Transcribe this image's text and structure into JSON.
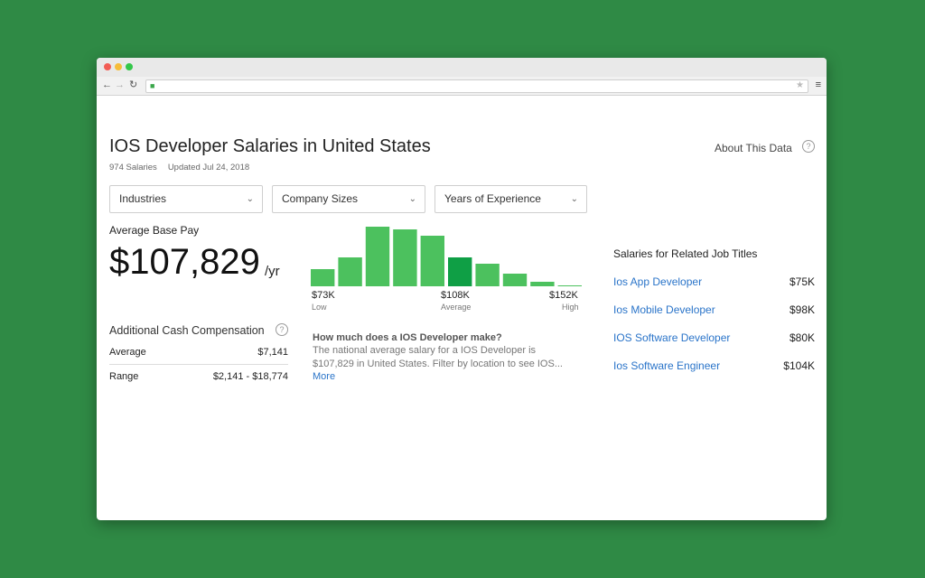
{
  "page": {
    "title": "IOS Developer Salaries in United States",
    "salary_count": "974 Salaries",
    "updated": "Updated Jul 24, 2018",
    "about_label": "About This Data",
    "help_glyph": "?"
  },
  "filters": [
    {
      "label": "Industries"
    },
    {
      "label": "Company Sizes"
    },
    {
      "label": "Years of Experience"
    }
  ],
  "average": {
    "label": "Average Base Pay",
    "value": "$107,829",
    "unit": "/yr"
  },
  "cash": {
    "label": "Additional Cash Compensation",
    "rows": [
      {
        "label": "Average",
        "value": "$7,141"
      },
      {
        "label": "Range",
        "value": "$2,141 - $18,774"
      }
    ]
  },
  "chart_data": {
    "type": "bar",
    "values": [
      19,
      32,
      66,
      63,
      56,
      32,
      25,
      14,
      5,
      1
    ],
    "highlight_index": 5,
    "colors": {
      "bar": "#4cc15e",
      "highlight": "#0f9f45"
    },
    "ticks": [
      {
        "value": "$73K",
        "label": "Low"
      },
      {
        "value": "$108K",
        "label": "Average"
      },
      {
        "value": "$152K",
        "label": "High"
      }
    ]
  },
  "description": {
    "question": "How much does a IOS Developer make?",
    "body": "The national average salary for a IOS Developer is $107,829 in United States. Filter by location to see IOS...",
    "more": "More"
  },
  "related": {
    "title": "Salaries for Related Job Titles",
    "items": [
      {
        "name": "Ios App Developer",
        "salary": "$75K"
      },
      {
        "name": "Ios Mobile Developer",
        "salary": "$98K"
      },
      {
        "name": "IOS Software Developer",
        "salary": "$80K"
      },
      {
        "name": "Ios Software Engineer",
        "salary": "$104K"
      }
    ]
  }
}
